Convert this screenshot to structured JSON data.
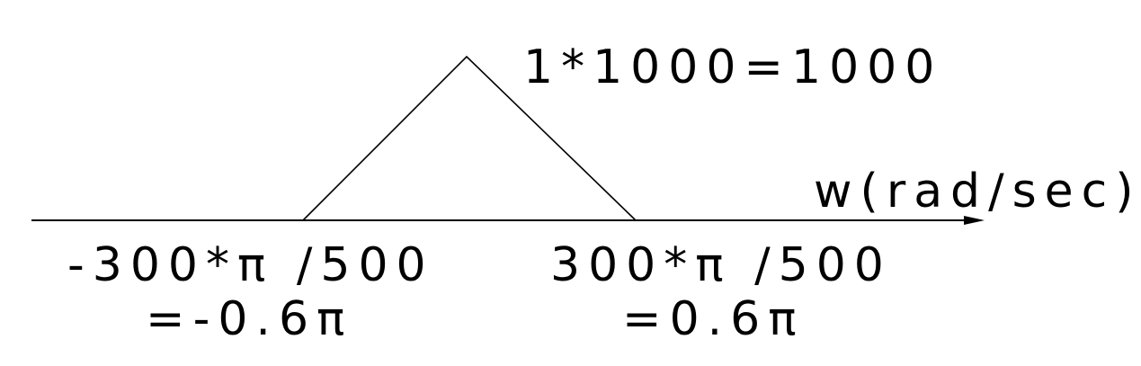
{
  "peak_label": "1*1000=1000",
  "axis_label": "w(rad/sec)",
  "left_label": {
    "line1": "-300*π /500",
    "line2": "=-0.6π"
  },
  "right_label": {
    "line1": "300*π /500",
    "line2": "=0.6π"
  },
  "colors": {
    "ink": "#000000",
    "background": "#ffffff"
  }
}
